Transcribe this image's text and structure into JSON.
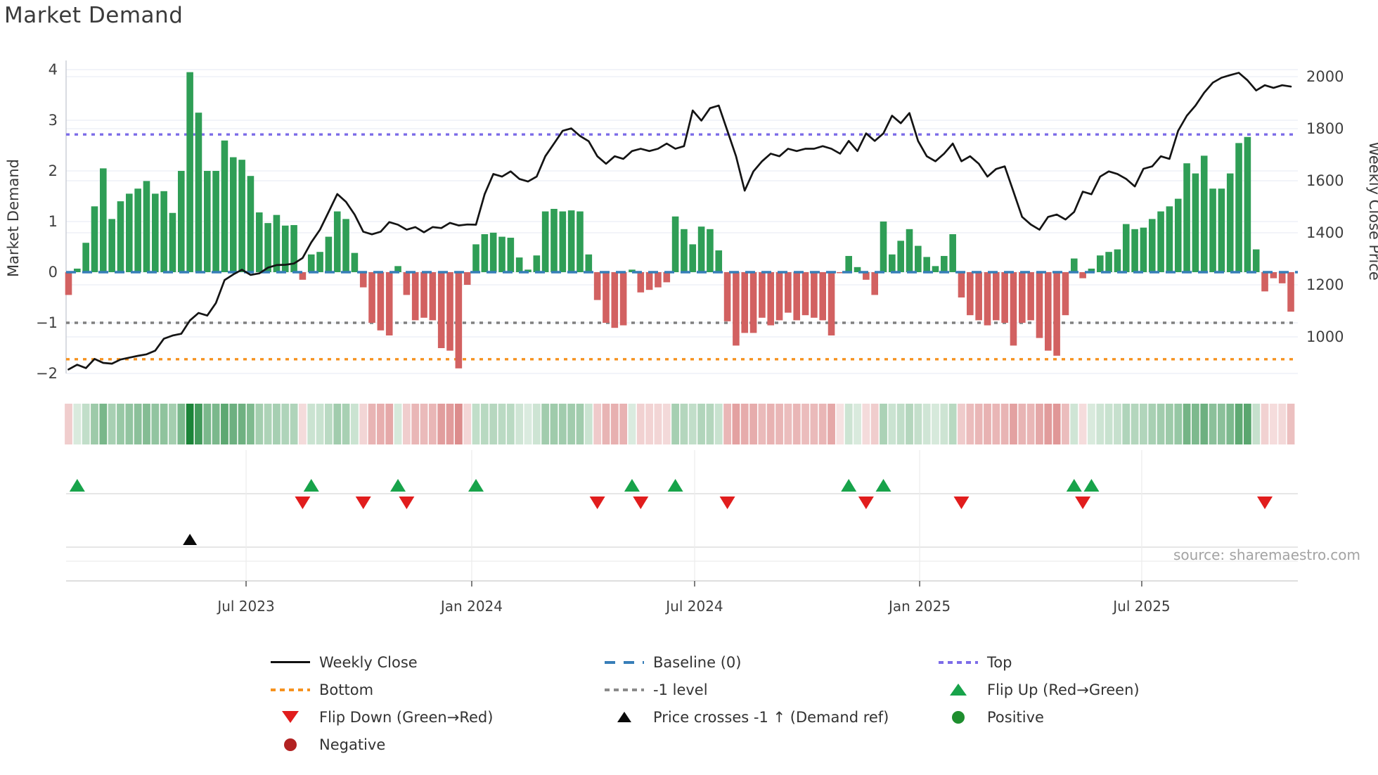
{
  "title": "Market Demand",
  "source_text": "source: sharemaestro.com",
  "axes": {
    "left_label": "Market Demand",
    "right_label": "Weekly Close Price",
    "left_ticks": [
      4,
      3,
      2,
      1,
      0,
      -1,
      -2
    ],
    "right_ticks": [
      2000,
      1800,
      1600,
      1400,
      1200,
      1000
    ],
    "x_ticks": [
      {
        "label": "Jul 2023",
        "week": 20.48
      },
      {
        "label": "Jan 2024",
        "week": 46.51
      },
      {
        "label": "Jul 2024",
        "week": 72.22
      },
      {
        "label": "Jan 2025",
        "week": 98.18
      },
      {
        "label": "Jul 2025",
        "week": 123.8
      }
    ]
  },
  "chart_data": {
    "type": "combo",
    "x_unit": "week",
    "n_points": 142,
    "left_axis_range": [
      -2,
      4.15
    ],
    "right_axis_range": [
      860,
      2055
    ],
    "reference_lines": {
      "baseline": 0,
      "top": 2.72,
      "bottom": -1.72,
      "minus_one_level": -1
    },
    "demand_bars": [
      -0.45,
      0.07,
      0.58,
      1.3,
      2.05,
      1.05,
      1.4,
      1.55,
      1.65,
      1.8,
      1.55,
      1.6,
      1.17,
      2.0,
      3.95,
      3.15,
      2.0,
      2.0,
      2.6,
      2.27,
      2.22,
      1.9,
      1.18,
      0.97,
      1.13,
      0.92,
      0.93,
      -0.15,
      0.35,
      0.4,
      0.7,
      1.2,
      1.05,
      0.38,
      -0.3,
      -1.0,
      -1.15,
      -1.25,
      0.12,
      -0.45,
      -0.95,
      -0.9,
      -0.95,
      -1.5,
      -1.55,
      -1.9,
      -0.25,
      0.55,
      0.75,
      0.78,
      0.7,
      0.68,
      0.29,
      0.05,
      0.33,
      1.2,
      1.25,
      1.2,
      1.22,
      1.2,
      0.35,
      -0.55,
      -1.0,
      -1.1,
      -1.05,
      0.05,
      -0.4,
      -0.35,
      -0.3,
      -0.2,
      1.1,
      0.85,
      0.55,
      0.9,
      0.85,
      0.43,
      -0.97,
      -1.45,
      -1.2,
      -1.2,
      -0.9,
      -1.05,
      -0.95,
      -0.8,
      -0.95,
      -0.85,
      -0.9,
      -0.95,
      -1.25,
      -0.02,
      0.32,
      0.1,
      -0.15,
      -0.45,
      1.0,
      0.35,
      0.62,
      0.85,
      0.52,
      0.3,
      0.12,
      0.32,
      0.75,
      -0.5,
      -0.85,
      -0.95,
      -1.05,
      -0.95,
      -1.0,
      -1.45,
      -1.0,
      -0.95,
      -1.3,
      -1.55,
      -1.65,
      -0.85,
      0.27,
      -0.12,
      0.07,
      0.33,
      0.4,
      0.45,
      0.95,
      0.85,
      0.88,
      1.05,
      1.2,
      1.3,
      1.45,
      2.15,
      1.95,
      2.3,
      1.65,
      1.65,
      1.95,
      2.55,
      2.67,
      0.45,
      -0.38,
      -0.12,
      -0.22,
      -0.78
    ],
    "weekly_close": [
      875,
      893,
      880,
      915,
      900,
      897,
      913,
      920,
      927,
      933,
      947,
      993,
      1005,
      1012,
      1063,
      1092,
      1082,
      1130,
      1218,
      1240,
      1258,
      1238,
      1244,
      1266,
      1276,
      1277,
      1282,
      1303,
      1363,
      1412,
      1480,
      1549,
      1519,
      1470,
      1404,
      1394,
      1404,
      1441,
      1431,
      1412,
      1422,
      1402,
      1422,
      1418,
      1438,
      1428,
      1432,
      1431,
      1548,
      1626,
      1616,
      1636,
      1607,
      1597,
      1616,
      1694,
      1743,
      1792,
      1801,
      1772,
      1752,
      1694,
      1665,
      1694,
      1684,
      1714,
      1723,
      1714,
      1723,
      1743,
      1723,
      1733,
      1870,
      1831,
      1879,
      1889,
      1792,
      1694,
      1562,
      1636,
      1675,
      1704,
      1694,
      1723,
      1714,
      1723,
      1723,
      1733,
      1723,
      1704,
      1753,
      1714,
      1782,
      1753,
      1782,
      1850,
      1821,
      1860,
      1753,
      1694,
      1675,
      1704,
      1743,
      1675,
      1694,
      1665,
      1616,
      1645,
      1655,
      1558,
      1461,
      1432,
      1412,
      1461,
      1470,
      1451,
      1480,
      1558,
      1548,
      1616,
      1636,
      1626,
      1607,
      1578,
      1646,
      1655,
      1694,
      1684,
      1792,
      1850,
      1889,
      1938,
      1977,
      1996,
      2006,
      2015,
      1986,
      1947,
      1967,
      1957,
      1967,
      1962
    ],
    "markers": {
      "flip_up_weeks": [
        1,
        28,
        38,
        47,
        65,
        70,
        90,
        94,
        116,
        118
      ],
      "flip_down_weeks": [
        27,
        34,
        39,
        61,
        66,
        76,
        92,
        103,
        117,
        138
      ],
      "price_cross_weeks": [
        14
      ]
    },
    "heatmap": {
      "description": "weekly demand intensity strip (green = positive, red = negative, darker = stronger)",
      "derived_from": "demand_bars"
    }
  },
  "colors": {
    "bar_positive": "#2f9e56",
    "bar_negative": "#d26161",
    "price_line": "#141414",
    "baseline": "#377eb8",
    "top_line": "#7c6ce8",
    "bottom_line": "#f6921e",
    "minus_one_line": "#808080",
    "flip_up": "#17a34a",
    "flip_down": "#e11d1d",
    "price_cross": "#0a0a0a",
    "positive_dot": "#1e8e2e",
    "negative_dot": "#b22222",
    "heat_green_rgb": "27,132,56",
    "heat_red_rgb": "197,63,63",
    "gridline": "#ebeef5"
  },
  "legend": {
    "items": [
      {
        "label": "Weekly Close",
        "glyph": "line"
      },
      {
        "label": "Baseline (0)",
        "glyph": "dash"
      },
      {
        "label": "Top",
        "glyph": "dots-purple"
      },
      {
        "label": "Bottom",
        "glyph": "dots-orange"
      },
      {
        "label": "-1 level",
        "glyph": "dots-gray"
      },
      {
        "label": "Flip Up (Red→Green)",
        "glyph": "tri-up-green"
      },
      {
        "label": "Flip Down (Green→Red)",
        "glyph": "tri-down-red"
      },
      {
        "label": "Price crosses -1 ↑ (Demand ref)",
        "glyph": "tri-up-black"
      },
      {
        "label": "Positive",
        "glyph": "circle-green"
      },
      {
        "label": "Negative",
        "glyph": "circle-red"
      }
    ]
  }
}
